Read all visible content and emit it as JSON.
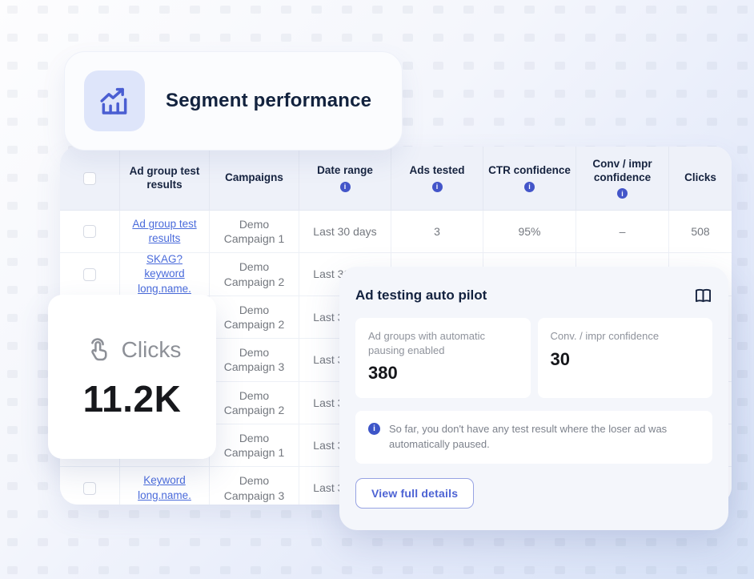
{
  "colors": {
    "accent_blue": "#4355c9",
    "link_blue": "#4a6bdb",
    "dark_navy": "#13223f",
    "body_gray": "#74787f",
    "header_bg": "#eef1f9",
    "panel_bg": "#f4f6fb"
  },
  "icons": {
    "segment": "trend-chart-icon",
    "clicks": "tap-icon",
    "autopilot_docs": "book-icon",
    "notice": "info-icon"
  },
  "segment_card": {
    "title": "Segment performance"
  },
  "table": {
    "columns": [
      {
        "label": "",
        "info": false
      },
      {
        "label": "Ad group test results",
        "info": false
      },
      {
        "label": "Campaigns",
        "info": false
      },
      {
        "label": "Date range",
        "info": true
      },
      {
        "label": "Ads tested",
        "info": true
      },
      {
        "label": "CTR confidence",
        "info": true
      },
      {
        "label": "Conv / impr confidence",
        "info": true
      },
      {
        "label": "Clicks",
        "info": false
      }
    ],
    "rows": [
      {
        "link": "Ad group test results",
        "campaign": "Demo Campaign 1",
        "date_range": "Last 30 days",
        "ads_tested": "3",
        "ctr_confidence": "95%",
        "conv_impr_confidence": "–",
        "clicks": "508"
      },
      {
        "link": "SKAG? keyword long.name.",
        "campaign": "Demo Campaign 2",
        "date_range": "Last 30 days",
        "ads_tested": "",
        "ctr_confidence": "",
        "conv_impr_confidence": "",
        "clicks": ""
      },
      {
        "link": "",
        "campaign": "Demo Campaign 2",
        "date_range": "Last 30 days",
        "ads_tested": "",
        "ctr_confidence": "",
        "conv_impr_confidence": "",
        "clicks": ""
      },
      {
        "link": "",
        "campaign": "Demo Campaign 3",
        "date_range": "Last 30 days",
        "ads_tested": "",
        "ctr_confidence": "",
        "conv_impr_confidence": "",
        "clicks": ""
      },
      {
        "link": "",
        "campaign": "Demo Campaign 2",
        "date_range": "Last 30 days",
        "ads_tested": "",
        "ctr_confidence": "",
        "conv_impr_confidence": "",
        "clicks": ""
      },
      {
        "link": "",
        "campaign": "Demo Campaign 1",
        "date_range": "Last 30 days",
        "ads_tested": "",
        "ctr_confidence": "",
        "conv_impr_confidence": "",
        "clicks": ""
      },
      {
        "link": "Keyword long.name.",
        "campaign": "Demo Campaign 3",
        "date_range": "Last 30 days",
        "ads_tested": "",
        "ctr_confidence": "",
        "conv_impr_confidence": "",
        "clicks": ""
      }
    ]
  },
  "clicks_card": {
    "label": "Clicks",
    "value": "11.2K"
  },
  "autopilot_card": {
    "title": "Ad testing auto pilot",
    "stats": [
      {
        "label": "Ad groups with automatic pausing enabled",
        "value": "380"
      },
      {
        "label": "Conv. / impr confidence",
        "value": "30"
      }
    ],
    "notice": "So far, you don't have any test result where the loser ad was automatically paused.",
    "button_label": "View full details"
  }
}
